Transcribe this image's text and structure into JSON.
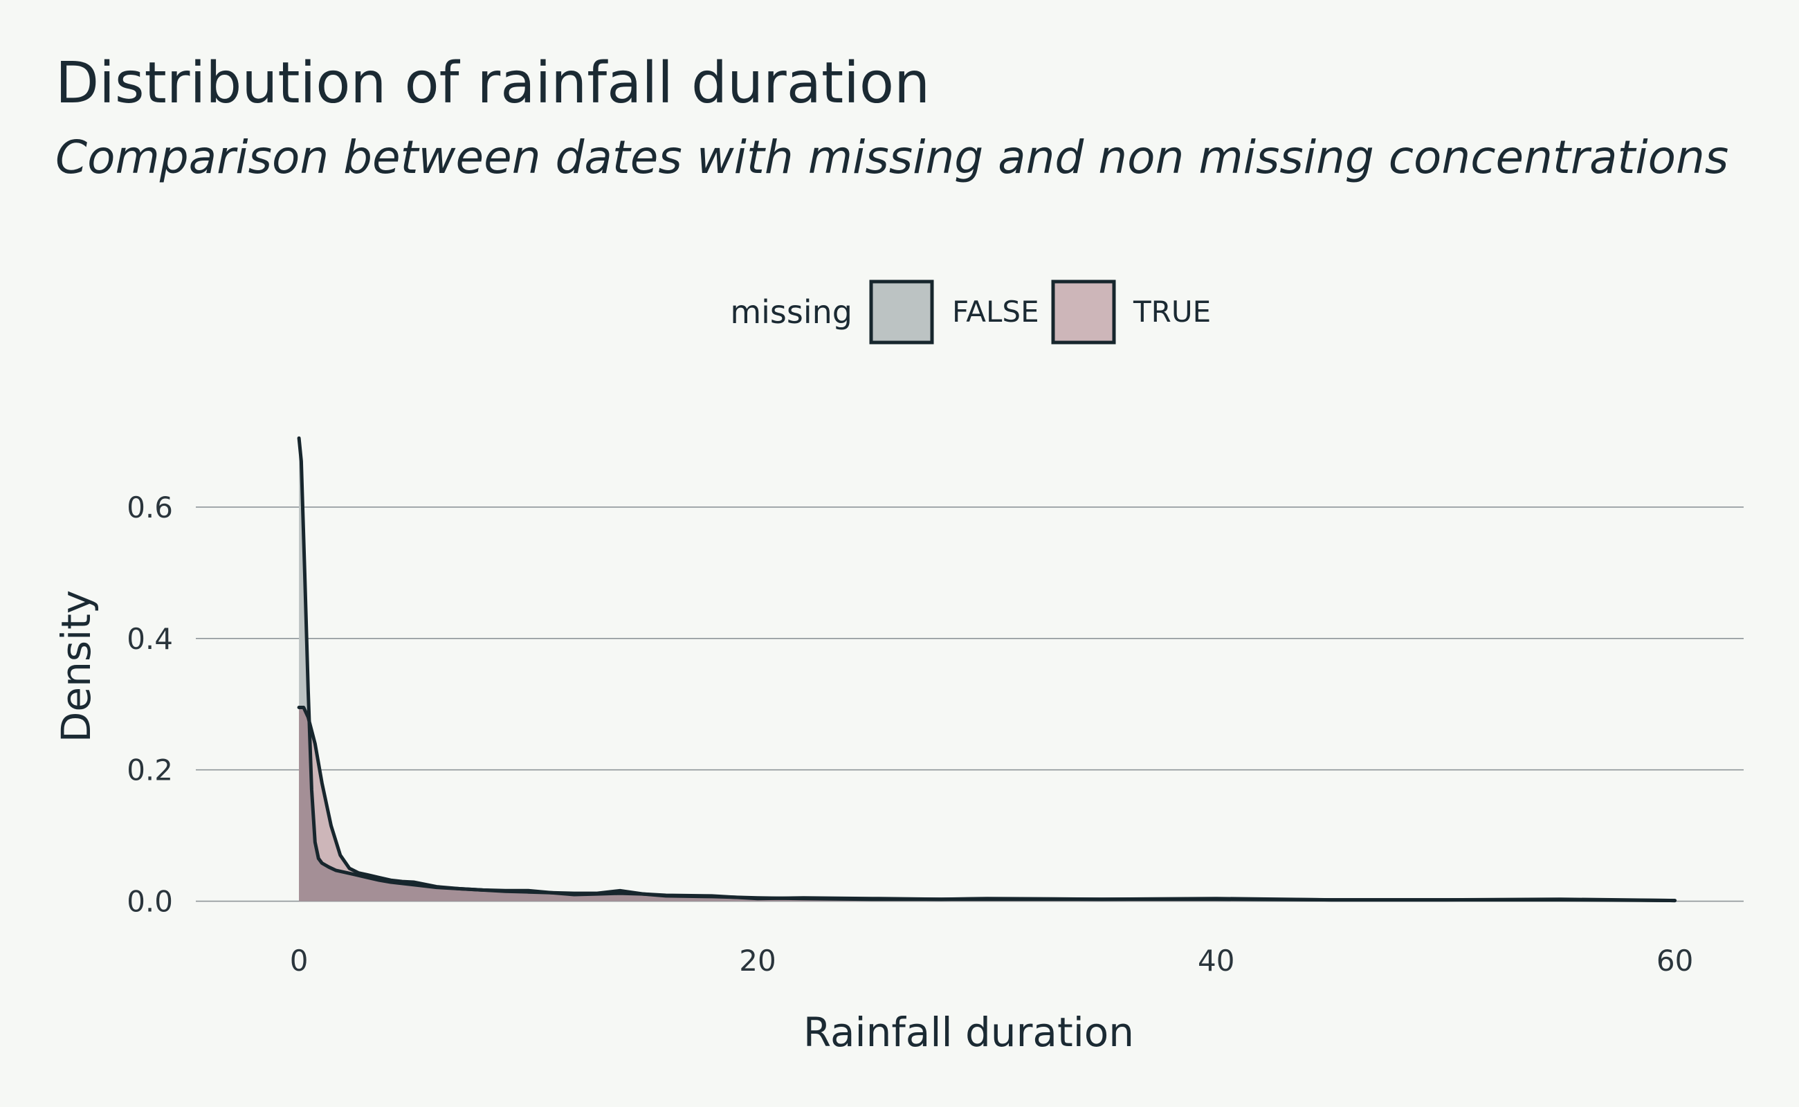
{
  "chart_data": {
    "type": "area",
    "title": "Distribution of rainfall duration",
    "subtitle": "Comparison between dates with missing and non missing concentrations",
    "xlabel": "Rainfall duration",
    "ylabel": "Density",
    "xlim": [
      -4.5,
      63
    ],
    "ylim": [
      -0.05,
      0.74
    ],
    "x_ticks": [
      0,
      20,
      40,
      60
    ],
    "y_ticks": [
      0.0,
      0.2,
      0.4,
      0.6
    ],
    "x_tick_labels": [
      "0",
      "20",
      "40",
      "60"
    ],
    "y_tick_labels": [
      "0.0",
      "0.2",
      "0.4",
      "0.6"
    ],
    "grid": "horizontal",
    "legend": {
      "title": "missing",
      "position": "top",
      "entries": [
        {
          "label": "FALSE",
          "color": "#bcc3c3"
        },
        {
          "label": "TRUE",
          "color": "#cdb6b9"
        }
      ]
    },
    "colors": {
      "background": "#f6f8f5",
      "false_fill": "#bcc3c3",
      "true_fill": "#cdb6b9",
      "overlap_fill": "#a48f96",
      "line": "#17262d",
      "grid": "#8e9599"
    },
    "series": [
      {
        "name": "FALSE",
        "x": [
          0,
          0.1,
          0.25,
          0.4,
          0.55,
          0.7,
          0.85,
          1.0,
          1.3,
          1.6,
          2.0,
          2.5,
          3,
          3.5,
          4,
          5,
          6,
          7,
          8,
          9,
          10,
          11,
          12,
          13,
          14,
          15,
          16,
          18,
          20,
          22,
          25,
          28,
          30,
          35,
          40,
          45,
          50,
          55,
          60
        ],
        "y": [
          0.705,
          0.67,
          0.5,
          0.32,
          0.17,
          0.09,
          0.065,
          0.058,
          0.052,
          0.047,
          0.044,
          0.04,
          0.036,
          0.032,
          0.029,
          0.025,
          0.021,
          0.019,
          0.017,
          0.015,
          0.014,
          0.013,
          0.012,
          0.012,
          0.016,
          0.011,
          0.008,
          0.007,
          0.005,
          0.004,
          0.003,
          0.003,
          0.003,
          0.003,
          0.003,
          0.002,
          0.002,
          0.002,
          0.001
        ]
      },
      {
        "name": "TRUE",
        "x": [
          0,
          0.2,
          0.4,
          0.7,
          1.0,
          1.4,
          1.8,
          2.2,
          2.6,
          3,
          3.5,
          4,
          4.5,
          5,
          6,
          7,
          8,
          9,
          10,
          11,
          12,
          13,
          14,
          15,
          16,
          18,
          20,
          22,
          25,
          28,
          30,
          35,
          40,
          45,
          50,
          55,
          60
        ],
        "y": [
          0.295,
          0.295,
          0.28,
          0.24,
          0.18,
          0.115,
          0.07,
          0.05,
          0.043,
          0.04,
          0.036,
          0.032,
          0.03,
          0.029,
          0.022,
          0.019,
          0.017,
          0.016,
          0.016,
          0.013,
          0.01,
          0.011,
          0.012,
          0.011,
          0.009,
          0.008,
          0.004,
          0.005,
          0.004,
          0.003,
          0.004,
          0.003,
          0.004,
          0.002,
          0.002,
          0.003,
          0.001
        ]
      }
    ]
  }
}
